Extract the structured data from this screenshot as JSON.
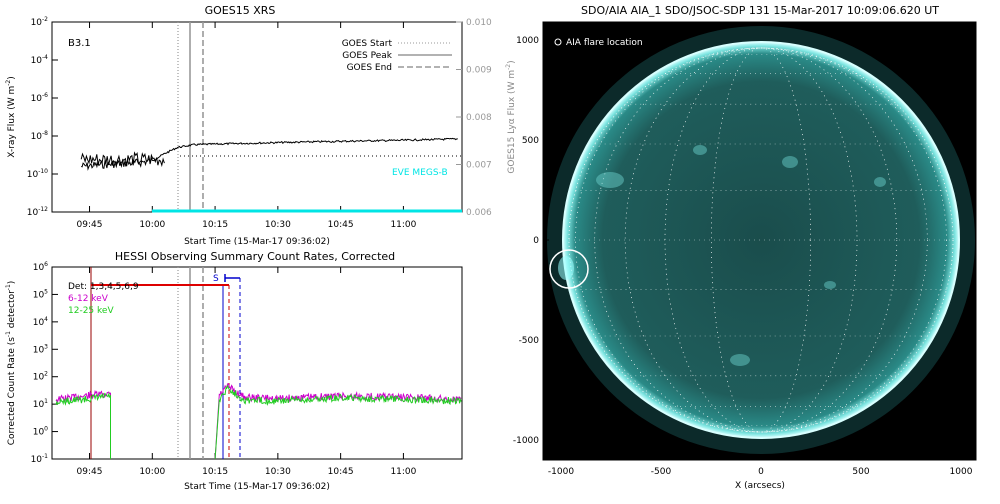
{
  "goes_panel": {
    "title": "GOES15 XRS",
    "flare_class": "B3.1",
    "ylabel_left": "X-ray Flux (W m",
    "ylabel_left_sup": "-2",
    "ylabel_left_end": ")",
    "ylabel_right": "GOES15 Lyα Flux (W m",
    "ylabel_right_sup": "-2",
    "ylabel_right_end": ")",
    "xlabel": "Start Time (15-Mar-17 09:36:02)",
    "eve_label": "EVE MEGS-B",
    "legend": [
      {
        "label": "GOES Start",
        "style": "dotted"
      },
      {
        "label": "GOES Peak",
        "style": "solid"
      },
      {
        "label": "GOES End",
        "style": "dashed"
      }
    ],
    "left_ticks": [
      {
        "base": "10",
        "exp": "-2"
      },
      {
        "base": "10",
        "exp": "-4"
      },
      {
        "base": "10",
        "exp": "-6"
      },
      {
        "base": "10",
        "exp": "-8"
      },
      {
        "base": "10",
        "exp": "-10"
      },
      {
        "base": "10",
        "exp": "-12"
      }
    ],
    "right_ticks": [
      "0.010",
      "0.009",
      "0.008",
      "0.007",
      "0.006"
    ],
    "x_ticks": [
      "09:45",
      "10:00",
      "10:15",
      "10:30",
      "10:45",
      "11:00"
    ]
  },
  "hessi_panel": {
    "title": "HESSI Observing Summary Count Rates, Corrected",
    "ylabel": "Corrected Count Rate (s",
    "ylabel_sup": "-1",
    "ylabel_mid": " detector",
    "ylabel_sup2": "-1",
    "ylabel_end": ")",
    "xlabel": "Start Time (15-Mar-17 09:36:02)",
    "s_marker": "S",
    "legend": [
      {
        "label": "Det: 1,3,4,5,6,9",
        "color": "#000000"
      },
      {
        "label": "6-12 keV",
        "color": "#cc00cc"
      },
      {
        "label": "12-25 keV",
        "color": "#22cc22"
      }
    ],
    "y_ticks": [
      {
        "base": "10",
        "exp": "6"
      },
      {
        "base": "10",
        "exp": "5"
      },
      {
        "base": "10",
        "exp": "4"
      },
      {
        "base": "10",
        "exp": "3"
      },
      {
        "base": "10",
        "exp": "2"
      },
      {
        "base": "10",
        "exp": "1"
      },
      {
        "base": "10",
        "exp": "0"
      },
      {
        "base": "10",
        "exp": "-1"
      }
    ],
    "x_ticks": [
      "09:45",
      "10:00",
      "10:15",
      "10:30",
      "10:45",
      "11:00"
    ]
  },
  "aia_panel": {
    "title": "SDO/AIA AIA_1 SDO/JSOC-SDP 131 15-Mar-2017 10:09:06.620 UT",
    "legend_label": "AIA flare location",
    "x_ticks": [
      "-1000",
      "-500",
      "0",
      "500",
      "1000"
    ],
    "y_ticks": [
      "1000",
      "500",
      "0",
      "-500",
      "-1000"
    ],
    "xlabel": "X (arcsecs)"
  },
  "colors": {
    "cyan": "#00e5e5",
    "hessi_green": "#22cc22",
    "hessi_magenta": "#cc00cc",
    "hessi_red": "#dd0000",
    "hessi_darkred": "#990000",
    "hessi_blue": "#0000cc",
    "sun_disk": "#1f5c5a",
    "sun_limb": "#bfffff"
  },
  "chart_data": [
    {
      "type": "line",
      "title": "GOES15 XRS",
      "xlabel": "Start Time (15-Mar-17 09:36:02)",
      "ylabel": "X-ray Flux (W m-2)",
      "y_scale": "log",
      "ylim": [
        1e-12,
        0.01
      ],
      "y2label": "GOES15 Lyα Flux (W m-2)",
      "y2lim": [
        0.006,
        0.01
      ],
      "x_ticks": [
        "09:45",
        "10:00",
        "10:15",
        "10:30",
        "10:45",
        "11:00"
      ],
      "x_range": [
        "09:36:02",
        "11:14:00"
      ],
      "vlines": [
        {
          "name": "GOES Start",
          "time": "10:06",
          "style": "dotted"
        },
        {
          "name": "GOES Peak",
          "time": "10:09",
          "style": "solid"
        },
        {
          "name": "GOES End",
          "time": "10:12",
          "style": "dashed"
        }
      ],
      "series": [
        {
          "name": "GOES XRS",
          "color": "#000000",
          "x": [
            "09:43",
            "09:47",
            "09:52",
            "09:57",
            "10:00",
            "10:03",
            "10:06",
            "10:10",
            "10:20",
            "10:30",
            "10:40",
            "10:50",
            "11:00",
            "11:13"
          ],
          "values": [
            2.5e-10,
            3e-10,
            3.5e-10,
            4e-10,
            5e-10,
            1.2e-09,
            2.5e-09,
            3.5e-09,
            4e-09,
            4.5e-09,
            5e-09,
            5.5e-09,
            6e-09,
            7e-09
          ]
        },
        {
          "name": "EVE MEGS-B",
          "color": "#00e5e5",
          "x": [
            "10:00",
            "11:14"
          ],
          "values": [
            0.006,
            0.006
          ]
        }
      ],
      "hline": {
        "value": 1.5e-10,
        "style": "dotted",
        "x": [
          "10:07",
          "11:14"
        ]
      }
    },
    {
      "type": "line",
      "title": "HESSI Observing Summary Count Rates, Corrected",
      "xlabel": "Start Time (15-Mar-17 09:36:02)",
      "ylabel": "Corrected Count Rate (s-1 detector-1)",
      "y_scale": "log",
      "ylim": [
        0.1,
        1000000
      ],
      "x_ticks": [
        "09:45",
        "10:00",
        "10:15",
        "10:30",
        "10:45",
        "11:00"
      ],
      "x_range": [
        "09:36:02",
        "11:14:00"
      ],
      "series": [
        {
          "name": "6-12 keV",
          "color": "#cc00cc",
          "x": [
            "09:37",
            "09:44",
            "09:50",
            "10:16",
            "10:18",
            "10:22",
            "10:30",
            "10:45",
            "11:00",
            "11:14"
          ],
          "values": [
            15,
            20,
            25,
            20,
            45,
            18,
            16,
            20,
            18,
            15
          ]
        },
        {
          "name": "12-25 keV",
          "color": "#22cc22",
          "x": [
            "09:37",
            "09:44",
            "09:50",
            "10:16",
            "10:18",
            "10:22",
            "10:30",
            "10:45",
            "11:00",
            "11:14"
          ],
          "values": [
            12,
            15,
            20,
            15,
            40,
            14,
            13,
            17,
            15,
            13
          ]
        }
      ],
      "gap": [
        "09:50",
        "10:15"
      ],
      "attenuator_bar": {
        "x": [
          "09:45",
          "10:18"
        ],
        "value": 180000
      },
      "vlines": [
        {
          "time": "09:45",
          "color": "#990000",
          "style": "solid"
        },
        {
          "time": "10:06",
          "color": "#888888",
          "style": "dotted"
        },
        {
          "time": "10:09",
          "color": "#888888",
          "style": "solid"
        },
        {
          "time": "10:12",
          "color": "#888888",
          "style": "dashed"
        },
        {
          "time": "10:16",
          "color": "#0000cc",
          "style": "solid"
        },
        {
          "time": "10:17",
          "color": "#cc0000",
          "style": "dashed"
        },
        {
          "time": "10:20",
          "color": "#0000cc",
          "style": "dashed"
        }
      ]
    }
  ]
}
